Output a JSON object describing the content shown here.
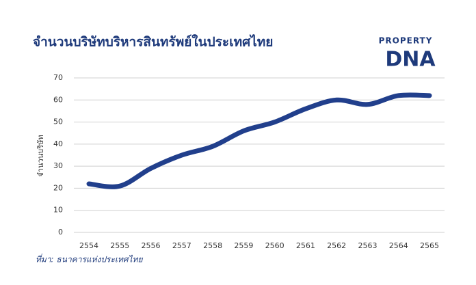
{
  "chart_data": {
    "type": "line",
    "title": "จำนวนบริษัทบริหารสินทรัพย์ในประเทศไทย",
    "y_label": "จำนวนบริษัท",
    "source": "ที่มา: ธนาคารแห่งประเทศไทย",
    "logo": {
      "top": "PROPERTY",
      "bottom": "DNA"
    },
    "categories": [
      "2554",
      "2555",
      "2556",
      "2557",
      "2558",
      "2559",
      "2560",
      "2561",
      "2562",
      "2563",
      "2564",
      "2565"
    ],
    "series": [
      {
        "name": "จำนวนบริษัท",
        "color": "#213f8c",
        "values": [
          22,
          21,
          29,
          35,
          39,
          46,
          50,
          56,
          60,
          58,
          62,
          62
        ]
      }
    ],
    "ylim": [
      0,
      70
    ],
    "yticks": [
      0,
      10,
      20,
      30,
      40,
      50,
      60,
      70
    ],
    "grid": true
  }
}
